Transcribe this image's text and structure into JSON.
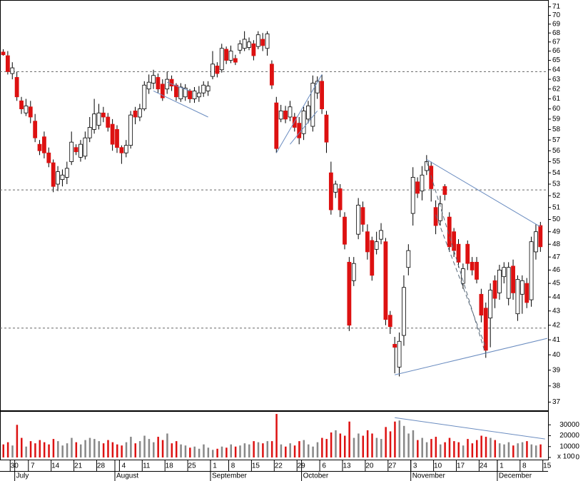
{
  "chart_data": {
    "type": "candlestick",
    "log_scale": true,
    "ylim": [
      36.5,
      71.8
    ],
    "yticks": [
      37,
      38,
      39,
      40,
      41,
      42,
      43,
      44,
      45,
      46,
      47,
      48,
      49,
      50,
      51,
      52,
      53,
      54,
      55,
      56,
      57,
      58,
      59,
      60,
      61,
      62,
      63,
      64,
      65,
      66,
      67,
      68,
      69,
      70,
      71
    ],
    "up_color": "#ffffff",
    "down_color": "#dd1111",
    "categories": [
      null,
      null,
      "30",
      null,
      null,
      null,
      "7",
      null,
      null,
      null,
      null,
      "14",
      null,
      null,
      null,
      null,
      "21",
      null,
      null,
      null,
      null,
      "28",
      null,
      null,
      null,
      null,
      "4",
      null,
      null,
      null,
      null,
      "11",
      null,
      null,
      null,
      null,
      "18",
      null,
      null,
      null,
      null,
      "25",
      null,
      null,
      null,
      null,
      "1",
      null,
      null,
      null,
      "8",
      null,
      null,
      null,
      null,
      "15",
      null,
      null,
      null,
      null,
      "22",
      null,
      null,
      null,
      null,
      "29",
      null,
      null,
      null,
      null,
      "6",
      null,
      null,
      null,
      null,
      "13",
      null,
      null,
      null,
      null,
      "20",
      null,
      null,
      null,
      null,
      "27",
      null,
      null,
      null,
      null,
      "3",
      null,
      null,
      null,
      null,
      "10",
      null,
      null,
      null,
      null,
      "17",
      null,
      null,
      null,
      null,
      "24",
      null,
      null,
      null,
      "1",
      null,
      null,
      null,
      null,
      "8",
      null,
      null,
      null,
      null,
      "15"
    ],
    "months": [
      null,
      null,
      null,
      "July",
      null,
      null,
      null,
      null,
      null,
      null,
      null,
      null,
      null,
      null,
      null,
      null,
      null,
      null,
      null,
      null,
      null,
      null,
      null,
      null,
      null,
      "August",
      null,
      null,
      null,
      null,
      null,
      null,
      null,
      null,
      null,
      null,
      null,
      null,
      null,
      null,
      null,
      null,
      null,
      null,
      null,
      null,
      "September",
      null,
      null,
      null,
      null,
      null,
      null,
      null,
      null,
      null,
      null,
      null,
      null,
      null,
      null,
      null,
      null,
      null,
      null,
      null,
      "October",
      null,
      null,
      null,
      null,
      null,
      null,
      null,
      null,
      null,
      null,
      null,
      null,
      null,
      null,
      null,
      null,
      null,
      null,
      null,
      null,
      null,
      null,
      null,
      "November",
      null,
      null,
      null,
      null,
      null,
      null,
      null,
      null,
      null,
      null,
      null,
      null,
      null,
      null,
      null,
      null,
      null,
      null,
      "December",
      null,
      null,
      null,
      null,
      null,
      null,
      null,
      null,
      null,
      null
    ],
    "open": [
      65.9,
      65.5,
      63.6,
      63.2,
      60.8,
      59.6,
      60.2,
      58.8,
      56.6,
      57.3,
      55.8,
      54.9,
      53,
      53.4,
      53.6,
      55,
      56.3,
      55.4,
      55.5,
      57.2,
      58,
      58.4,
      59.6,
      59.2,
      58.5,
      58,
      56.3,
      55.8,
      56.5,
      59.8,
      59.2,
      60,
      62,
      62.6,
      63.2,
      62.5,
      62,
      63,
      62.4,
      61,
      61.2,
      61.8,
      61,
      61.2,
      61.6,
      61.8,
      63.3,
      64.4,
      64,
      66.2,
      65,
      65.2,
      66.1,
      66.3,
      66.4,
      66.8,
      66.5,
      67.3,
      66.3,
      64.6,
      60.6,
      59,
      59.8,
      59.2,
      59.2,
      58.6,
      57.6,
      59,
      58.3,
      61.6,
      62.8,
      59.4,
      54,
      52.3,
      52.6,
      50.2,
      46.6,
      45.2,
      48.8,
      51,
      49,
      48.3,
      47.6,
      48.4,
      48.2,
      42.7,
      40.7,
      39.2,
      41.3,
      46.2,
      50.5,
      53.2,
      52.4,
      54.2,
      54.6,
      51,
      49.9,
      52.8,
      50.2,
      49,
      48,
      45,
      48,
      46.6,
      46.6,
      44.2,
      43.2,
      42.5,
      45.2,
      44.3,
      45.5,
      43.9,
      46.3,
      42.8,
      44.2,
      45,
      43.8,
      47.4,
      49.5,
      null
    ],
    "high": [
      66.2,
      66,
      64.8,
      63.8,
      61.2,
      61,
      60.8,
      59.5,
      57,
      57.8,
      56.3,
      55.2,
      54.6,
      54.3,
      55,
      57.8,
      56.6,
      57,
      57.8,
      59.2,
      61,
      60.5,
      60.2,
      59.6,
      59,
      58.4,
      56.5,
      57,
      59.8,
      60.2,
      60.5,
      62.8,
      63.5,
      64,
      63.6,
      63,
      63.8,
      63.4,
      62.6,
      62.6,
      62.5,
      62,
      62.2,
      62.3,
      62.8,
      62.8,
      66,
      64.8,
      66.8,
      66.5,
      66.6,
      65.6,
      67.2,
      68.2,
      67.5,
      67.2,
      68.2,
      68,
      68.2,
      65,
      61.2,
      60.4,
      60.3,
      60.8,
      59.6,
      59.2,
      60.2,
      60.8,
      63.4,
      63.3,
      63.5,
      59.8,
      55,
      53.3,
      53,
      50.6,
      47,
      47,
      51.8,
      51.5,
      49.6,
      48.6,
      49,
      49.7,
      48.5,
      43,
      41.2,
      41.5,
      45.6,
      48,
      54.5,
      53.6,
      54.6,
      55.6,
      55,
      51.6,
      52,
      53,
      50.6,
      49.3,
      48.4,
      46.5,
      48.3,
      47,
      47,
      44.6,
      43.6,
      45,
      45.6,
      46.4,
      46.6,
      46.6,
      46.8,
      45.6,
      45.6,
      45.4,
      48.6,
      49.6,
      49.8,
      null
    ],
    "low": [
      65.5,
      63.5,
      63,
      60.8,
      59.5,
      59.3,
      58.6,
      56.8,
      55.6,
      55.3,
      54.5,
      52.3,
      52.4,
      52.8,
      53,
      54.7,
      55.6,
      55,
      55.2,
      56.8,
      57.6,
      58,
      58.7,
      57.8,
      56,
      55.8,
      54.8,
      55.4,
      56.2,
      58.5,
      58.8,
      59.8,
      61.5,
      62,
      61.6,
      60.8,
      61.5,
      61.8,
      60.8,
      60.7,
      60.8,
      60.6,
      60.6,
      60.7,
      61.2,
      61.3,
      63,
      63.2,
      63.7,
      64.6,
      64.7,
      64.5,
      65.7,
      66,
      66.1,
      65,
      66.2,
      66,
      65.5,
      62,
      55.8,
      58.7,
      58.6,
      58.8,
      57.8,
      56.6,
      57,
      58.6,
      57.8,
      61,
      59.5,
      55.8,
      50.4,
      51.8,
      50.2,
      47.6,
      41.6,
      44.8,
      48.4,
      49,
      46.8,
      45.2,
      47.2,
      48,
      42,
      41.4,
      38.8,
      38.6,
      40.6,
      45.6,
      49.5,
      51.8,
      51.6,
      53.8,
      51.5,
      48.8,
      49.5,
      51.6,
      47.4,
      47,
      46.2,
      44.6,
      46,
      45.6,
      45,
      42.2,
      39.8,
      40.5,
      43.2,
      43.8,
      45,
      43.4,
      43.8,
      42.3,
      42.8,
      43.2,
      43.3,
      46.8,
      47.4,
      null
    ],
    "close": [
      65.6,
      63.8,
      64.2,
      61.2,
      60,
      60.3,
      59.2,
      57.2,
      56,
      55.8,
      54.9,
      52.8,
      54.1,
      53.8,
      54.4,
      56.8,
      55.9,
      56.6,
      57.2,
      58.2,
      59.5,
      59.6,
      59.2,
      58.2,
      56.6,
      56.3,
      55.8,
      56.5,
      59.4,
      59.2,
      60,
      62.4,
      62.7,
      63.4,
      62,
      61.1,
      63,
      62.3,
      61.2,
      62.2,
      62.1,
      61,
      61.8,
      61.6,
      62.4,
      62.3,
      64.6,
      63.6,
      66.3,
      65,
      66,
      64.8,
      66.8,
      67.3,
      67,
      65.5,
      67.8,
      66.6,
      67.9,
      62.4,
      56.2,
      59.8,
      59,
      60.2,
      58.2,
      57.2,
      59.8,
      60.3,
      62.6,
      62.8,
      60,
      56.8,
      50.8,
      53,
      50.8,
      48,
      42,
      46.5,
      51.2,
      49.6,
      47.4,
      45.6,
      48.2,
      49.1,
      42.4,
      41.9,
      40.5,
      40.9,
      44.7,
      47.5,
      53.6,
      52.2,
      53.8,
      55,
      52.6,
      49.5,
      51.3,
      52.1,
      47.8,
      47.5,
      46.6,
      46.1,
      46.5,
      46,
      45.3,
      42.7,
      40.3,
      44.5,
      43.9,
      46,
      46.2,
      46.2,
      44.3,
      45.3,
      45.2,
      43.6,
      48.2,
      49,
      47.8,
      null
    ],
    "reference_lines": [
      63.8,
      52.5,
      41.8
    ],
    "trendlines": [
      {
        "points": [
          [
            33,
            61.8
          ],
          [
            45,
            59.2
          ]
        ],
        "dashed": false
      },
      {
        "points": [
          [
            36,
            62.7
          ],
          [
            41,
            61.8
          ]
        ],
        "dashed": false
      },
      {
        "points": [
          [
            60,
            55.8
          ],
          [
            70,
            63.5
          ]
        ],
        "dashed": false
      },
      {
        "points": [
          [
            63,
            56.6
          ],
          [
            69,
            59.8
          ]
        ],
        "dashed": false
      },
      {
        "points": [
          [
            93,
            55.2
          ],
          [
            118,
            49.4
          ]
        ],
        "dashed": false
      },
      {
        "points": [
          [
            86,
            38.7
          ],
          [
            119.5,
            41.1
          ]
        ],
        "dashed": false
      },
      {
        "points": [
          [
            93,
            55
          ],
          [
            106,
            40
          ]
        ],
        "dashed": true
      },
      {
        "points": [
          [
            95,
            50.4
          ],
          [
            106,
            40.5
          ]
        ],
        "dashed": true
      }
    ],
    "volume": {
      "label": "x 100",
      "ylim": [
        0,
        42000
      ],
      "yticks": [
        0,
        10000,
        20000,
        30000
      ],
      "up_color": "#888888",
      "down_color": "#dd1111",
      "values": [
        12000,
        14000,
        11000,
        30000,
        18000,
        10000,
        15000,
        13000,
        16000,
        14000,
        12000,
        17000,
        15000,
        11000,
        13000,
        18000,
        14000,
        12000,
        16000,
        18000,
        17000,
        15000,
        13000,
        16000,
        14000,
        12000,
        11000,
        14000,
        19000,
        13000,
        15000,
        20000,
        17000,
        14000,
        19000,
        16000,
        22000,
        13000,
        15000,
        12000,
        11000,
        9000,
        10000,
        8000,
        12000,
        9000,
        7000,
        8000,
        10000,
        9000,
        12000,
        10000,
        11000,
        13000,
        12000,
        15000,
        14000,
        13000,
        15000,
        15000,
        40000,
        12000,
        10000,
        13000,
        11000,
        15000,
        16000,
        12000,
        10000,
        14000,
        18000,
        17000,
        23000,
        25000,
        22000,
        20000,
        33000,
        18000,
        22000,
        20000,
        25000,
        22000,
        18000,
        17000,
        28000,
        24000,
        33000,
        34000,
        29000,
        22000,
        25000,
        16000,
        18000,
        14000,
        17000,
        19000,
        12000,
        14000,
        18000,
        15000,
        14000,
        11000,
        17000,
        13000,
        16000,
        20000,
        19000,
        18000,
        16000,
        13000,
        12000,
        14000,
        11000,
        13000,
        14000,
        15000,
        12000,
        11000,
        12000,
        null
      ],
      "trendline": {
        "points": [
          [
            86,
            36600
          ],
          [
            119,
            17000
          ]
        ]
      }
    }
  }
}
